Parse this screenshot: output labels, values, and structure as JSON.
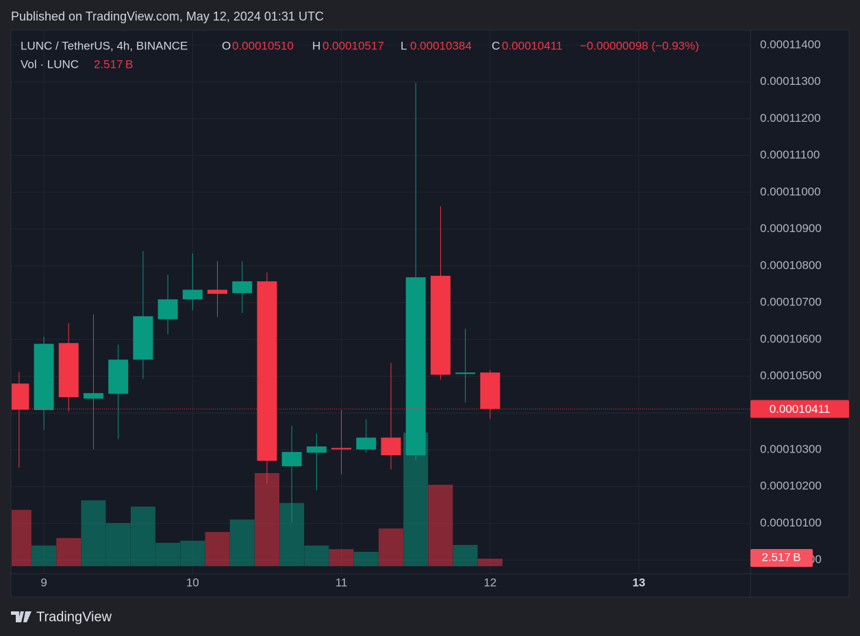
{
  "published": "Published on TradingView.com, May 12, 2024 01:31 UTC",
  "brand": "TradingView",
  "chart_data": {
    "type": "candlestick",
    "legend": {
      "symbol": "LUNC / TetherUS, 4h, BINANCE",
      "open_label": "O",
      "open": "0.00010510",
      "high_label": "H",
      "high": "0.00010517",
      "low_label": "L",
      "low": "0.00010384",
      "close_label": "C",
      "close": "0.00010411",
      "change": "−0.00000098 (−0.93%)"
    },
    "up_color": "#089981",
    "down_color": "#f23645",
    "x": [
      0,
      1,
      2,
      3,
      4,
      5,
      6,
      7,
      8,
      9,
      10,
      11,
      12,
      13,
      14,
      15,
      16,
      17,
      18,
      19
    ],
    "open": [
      0.0001048,
      0.00010408,
      0.0001059,
      0.00010439,
      0.00010452,
      0.00010545,
      0.00010655,
      0.00010709,
      0.00010735,
      0.00010726,
      0.00010758,
      0.00010255,
      0.00010292,
      0.00010305,
      0.00010301,
      0.00010333,
      0.00010285,
      0.00010773,
      0.00010506,
      0.0001051
    ],
    "high": [
      0.00010512,
      0.00010607,
      0.00010644,
      0.00010668,
      0.00010586,
      0.0001084,
      0.00010776,
      0.00010834,
      0.00010813,
      0.00010813,
      0.00010782,
      0.00010365,
      0.00010344,
      0.00010408,
      0.00010383,
      0.00010536,
      0.00011298,
      0.00010962,
      0.00010629,
      0.00010517
    ],
    "low": [
      0.00010251,
      0.00010354,
      0.00010404,
      0.00010301,
      0.00010329,
      0.00010493,
      0.00010614,
      0.00010679,
      0.00010661,
      0.00010672,
      0.00010208,
      0.00010102,
      0.0001019,
      0.00010233,
      0.00010292,
      0.00010246,
      0.00010272,
      0.00010491,
      0.00010428,
      0.00010384
    ],
    "close": [
      0.00010409,
      0.00010588,
      0.00010443,
      0.00010454,
      0.00010545,
      0.00010663,
      0.00010709,
      0.00010735,
      0.00010724,
      0.00010758,
      0.0001027,
      0.00010294,
      0.00010309,
      0.00010301,
      0.00010333,
      0.00010285,
      0.00010769,
      0.00010504,
      0.0001051,
      0.00010411
    ],
    "volume": {
      "name": "Vol · LUNC",
      "unit_label": "2.517 B",
      "values": [
        18.8,
        6.9,
        9.4,
        22.0,
        14.4,
        19.9,
        7.8,
        8.5,
        11.4,
        15.6,
        31.1,
        21.1,
        6.9,
        5.7,
        4.8,
        12.6,
        44.6,
        27.2,
        7.1,
        2.517
      ]
    },
    "xlim": [
      -0.3,
      29.5
    ],
    "xticks": [
      {
        "value": 1,
        "label": "9"
      },
      {
        "value": 7,
        "label": "10"
      },
      {
        "value": 13,
        "label": "11"
      },
      {
        "value": 19,
        "label": "12"
      },
      {
        "value": 25,
        "label": "13"
      }
    ],
    "ylim": [
      9.963e-05,
      0.00011441
    ],
    "yticks": [
      {
        "value": 0.0001,
        "label": "0.00010000"
      },
      {
        "value": 0.000101,
        "label": "0.00010100"
      },
      {
        "value": 0.000102,
        "label": "0.00010200"
      },
      {
        "value": 0.000103,
        "label": "0.00010300"
      },
      {
        "value": 0.000104,
        "label": "0.00010400"
      },
      {
        "value": 0.000105,
        "label": "0.00010500"
      },
      {
        "value": 0.000106,
        "label": "0.00010600"
      },
      {
        "value": 0.000107,
        "label": "0.00010700"
      },
      {
        "value": 0.000108,
        "label": "0.00010800"
      },
      {
        "value": 0.000109,
        "label": "0.00010900"
      },
      {
        "value": 0.00011,
        "label": "0.00011000"
      },
      {
        "value": 0.000111,
        "label": "0.00011100"
      },
      {
        "value": 0.000112,
        "label": "0.00011200"
      },
      {
        "value": 0.000113,
        "label": "0.00011300"
      },
      {
        "value": 0.000114,
        "label": "0.00011400"
      }
    ],
    "grid": true
  }
}
